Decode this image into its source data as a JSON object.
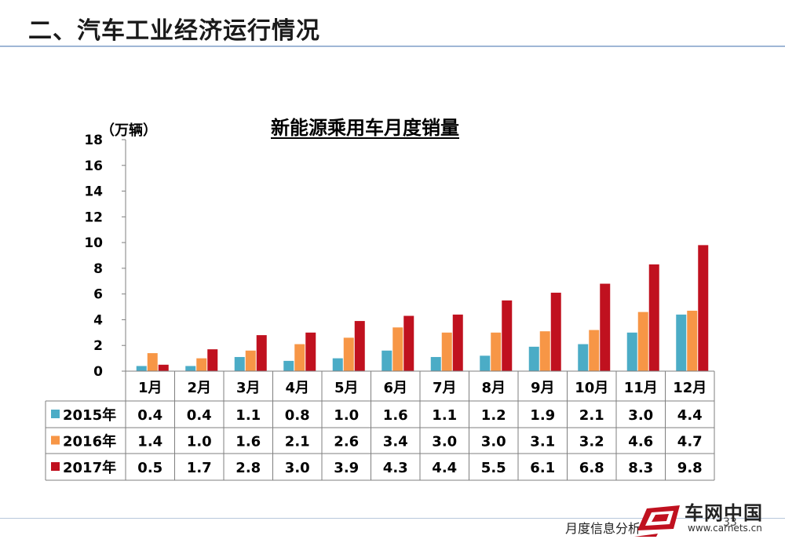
{
  "slide": {
    "title": "二、汽车工业经济运行情况",
    "footer_text": "月度信息分析",
    "page_number": "33"
  },
  "logo": {
    "name": "车网中国",
    "url": "www.carnets.cn"
  },
  "colors": {
    "s2015": "#4bacc6",
    "s2016": "#f79646",
    "s2017": "#c0111f"
  },
  "chart_data": {
    "type": "bar",
    "title": "新能源乘用车月度销量",
    "ylabel": "（万辆）",
    "xlabel": "",
    "ylim": [
      0,
      18
    ],
    "yticks": [
      0,
      2,
      4,
      6,
      8,
      10,
      12,
      14,
      16,
      18
    ],
    "grid": false,
    "legend": "data-table",
    "categories": [
      "1月",
      "2月",
      "3月",
      "4月",
      "5月",
      "6月",
      "7月",
      "8月",
      "9月",
      "10月",
      "11月",
      "12月"
    ],
    "series": [
      {
        "name": "2015年",
        "values": [
          0.4,
          0.4,
          1.1,
          0.8,
          1.0,
          1.6,
          1.1,
          1.2,
          1.9,
          2.1,
          3.0,
          4.4
        ],
        "labels": [
          "0.4",
          "0.4",
          "1.1",
          "0.8",
          "1.0",
          "1.6",
          "1.1",
          "1.2",
          "1.9",
          "2.1",
          "3.0",
          "4.4"
        ]
      },
      {
        "name": "2016年",
        "values": [
          1.4,
          1.0,
          1.6,
          2.1,
          2.6,
          3.4,
          3.0,
          3.0,
          3.1,
          3.2,
          4.6,
          4.7
        ],
        "labels": [
          "1.4",
          "1.0",
          "1.6",
          "2.1",
          "2.6",
          "3.4",
          "3.0",
          "3.0",
          "3.1",
          "3.2",
          "4.6",
          "4.7"
        ]
      },
      {
        "name": "2017年",
        "values": [
          0.5,
          1.7,
          2.8,
          3.0,
          3.9,
          4.3,
          4.4,
          5.5,
          6.1,
          6.8,
          8.3,
          9.8
        ],
        "labels": [
          "0.5",
          "1.7",
          "2.8",
          "3.0",
          "3.9",
          "4.3",
          "4.4",
          "5.5",
          "6.1",
          "6.8",
          "8.3",
          "9.8"
        ]
      }
    ]
  }
}
